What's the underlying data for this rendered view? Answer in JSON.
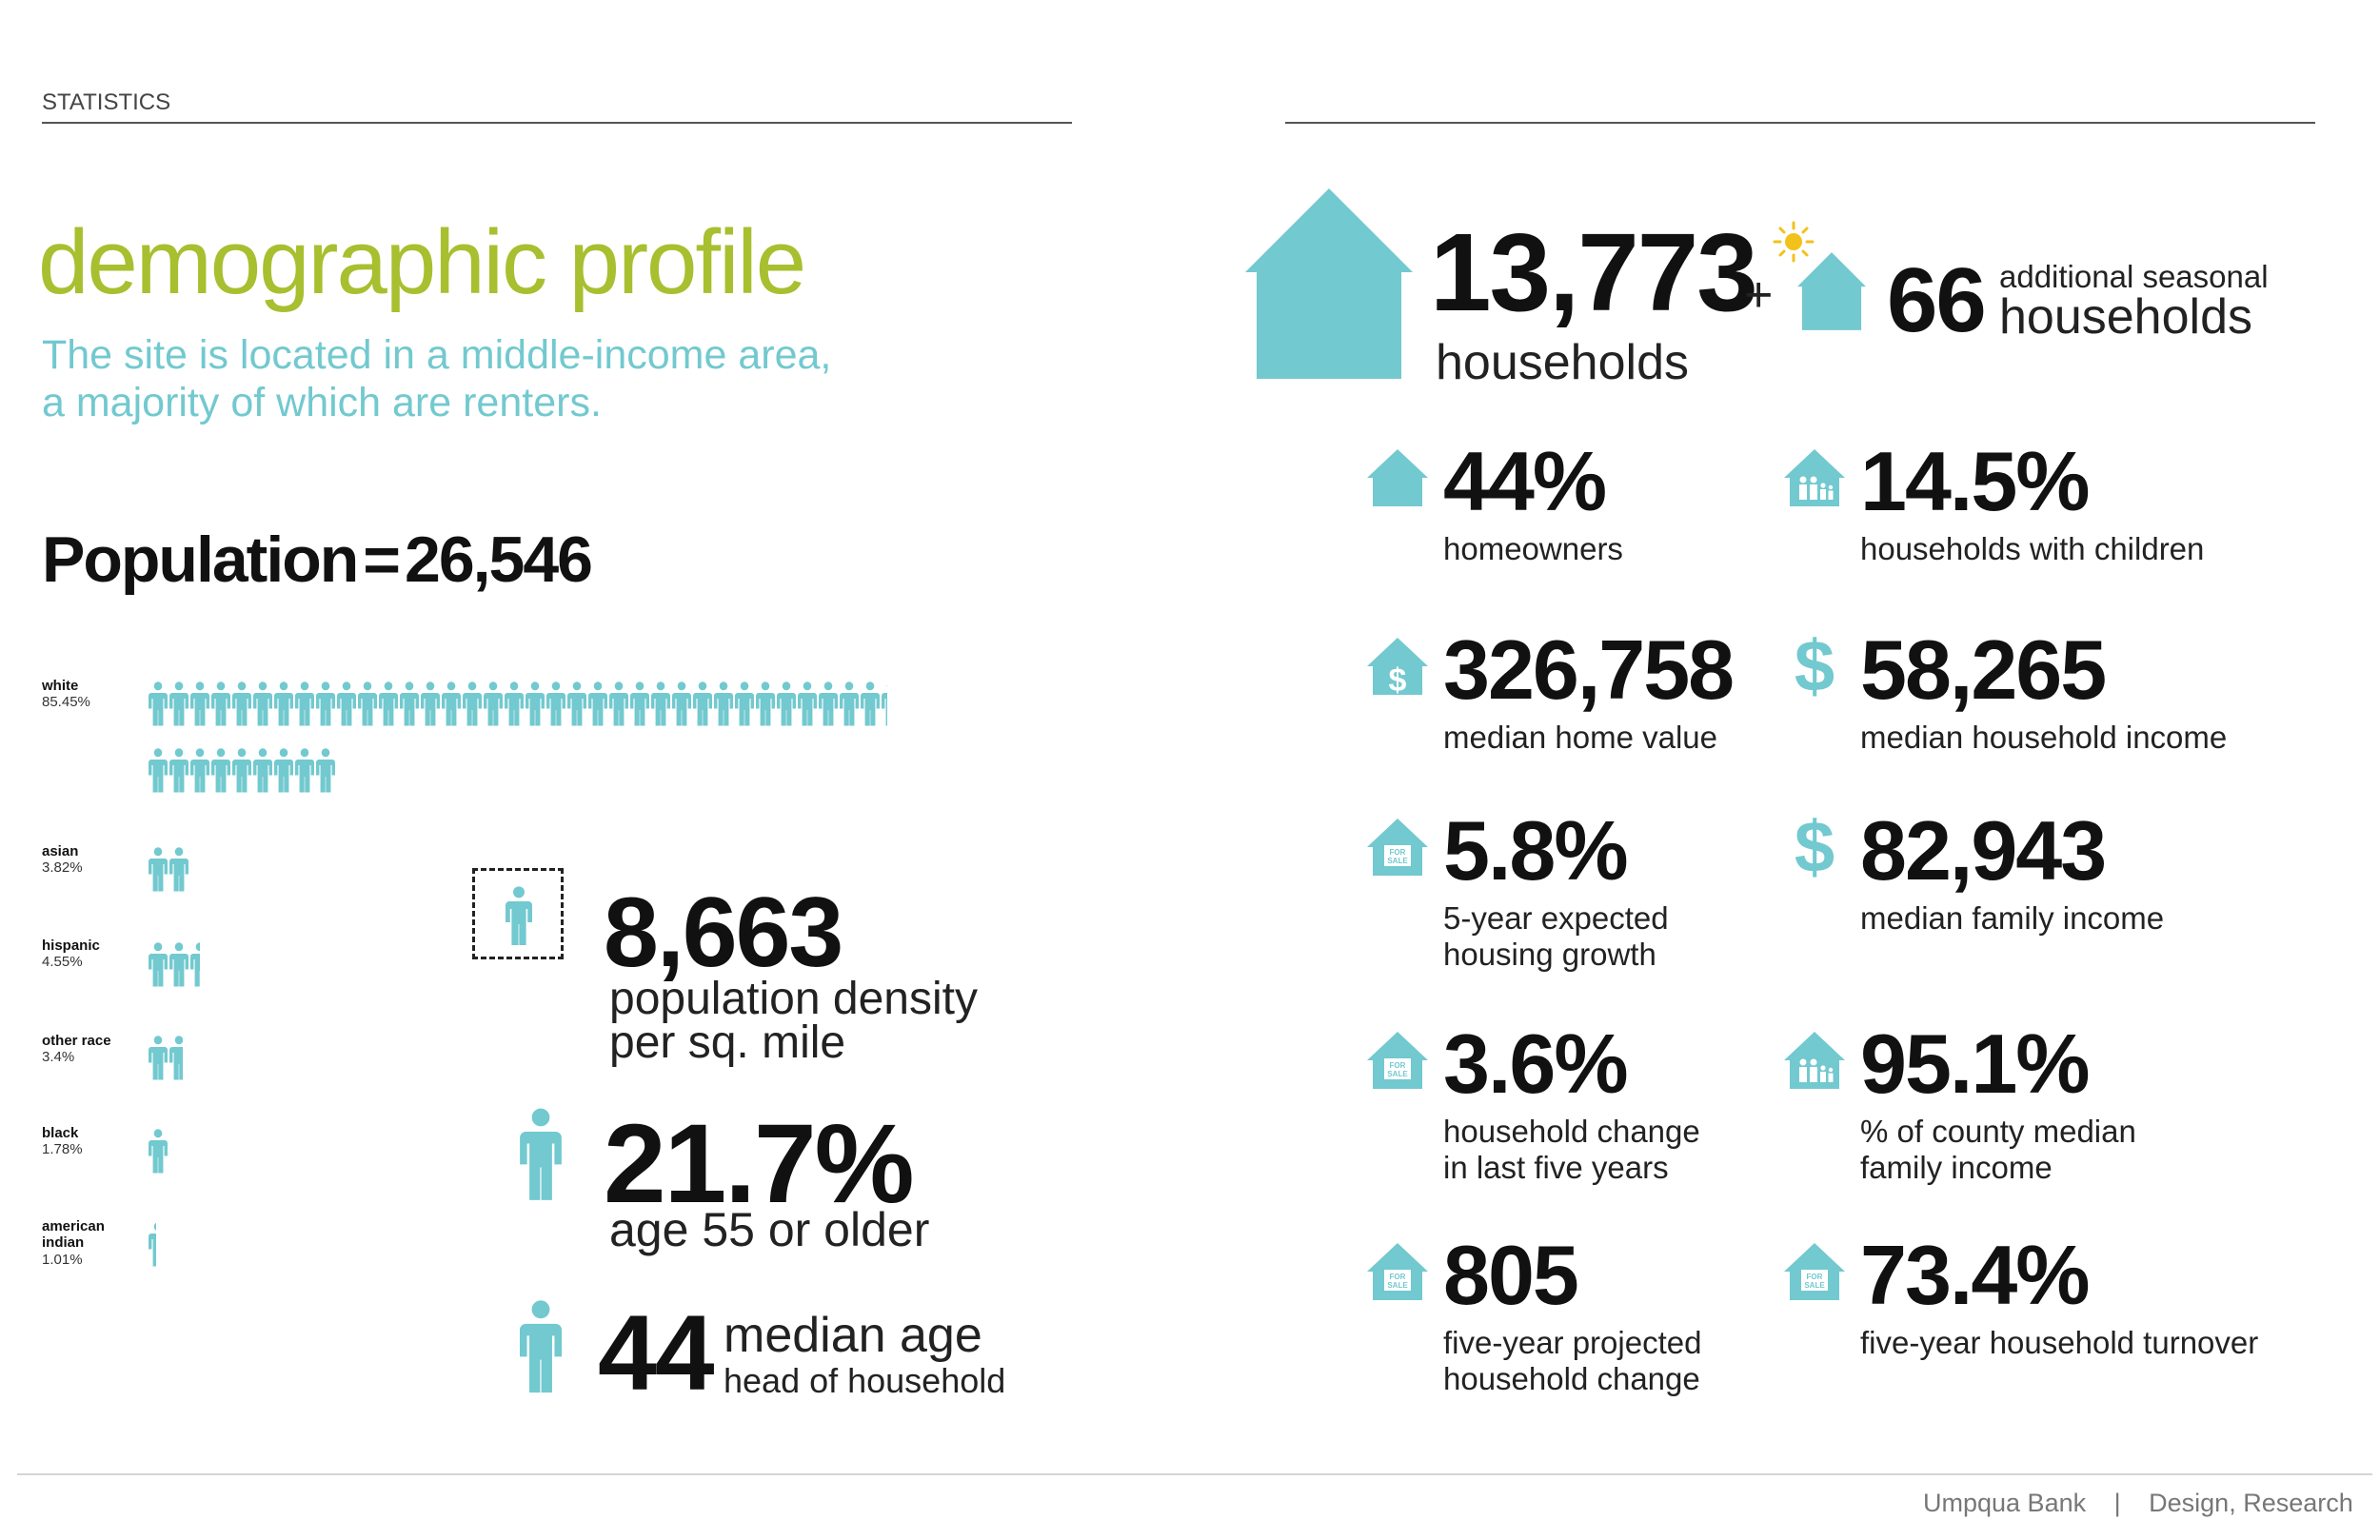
{
  "header": {
    "section_label": "STATISTICS"
  },
  "intro": {
    "title": "demographic profile",
    "subtitle_line1": "The site is located in a middle-income area,",
    "subtitle_line2": "a majority of which are renters."
  },
  "population": {
    "label": "Population",
    "equals": "=",
    "value": "26,546"
  },
  "races": [
    {
      "name": "white",
      "pct": "85.45%",
      "share": 85.45
    },
    {
      "name": "asian",
      "pct": "3.82%",
      "share": 3.82
    },
    {
      "name": "hispanic",
      "pct": "4.55%",
      "share": 4.55
    },
    {
      "name": "other race",
      "pct": "3.4%",
      "share": 3.4
    },
    {
      "name": "black",
      "pct": "1.78%",
      "share": 1.78
    },
    {
      "name": "american indian",
      "pct": "1.01%",
      "share": 1.01,
      "name_line1": "american",
      "name_line2": "indian"
    }
  ],
  "density": {
    "value": "8,663",
    "label_line1": "population density",
    "label_line2": "per sq. mile"
  },
  "age55": {
    "value": "21.7%",
    "label": "age 55 or older"
  },
  "median_age": {
    "value": "44",
    "label_line1": "median age",
    "label_line2": "head of household"
  },
  "households": {
    "value": "13,773",
    "label": "households",
    "plus": "+",
    "seasonal_value": "66",
    "seasonal_label_line1": "additional seasonal",
    "seasonal_label_line2": "households"
  },
  "stats": [
    {
      "icon": "house-icon",
      "value": "44%",
      "line1": "homeowners",
      "line2": ""
    },
    {
      "icon": "family-house-icon",
      "value": "14.5%",
      "line1": "households with children",
      "line2": ""
    },
    {
      "icon": "dollar-house-icon",
      "value": "326,758",
      "line1": "median home value",
      "line2": ""
    },
    {
      "icon": "dollar-icon",
      "value": "58,265",
      "line1": "median household income",
      "line2": ""
    },
    {
      "icon": "for-sale-house-icon",
      "value": "5.8%",
      "line1": "5-year expected",
      "line2": "housing growth"
    },
    {
      "icon": "dollar-icon",
      "value": "82,943",
      "line1": "median family income",
      "line2": ""
    },
    {
      "icon": "for-sale-house-icon",
      "value": "3.6%",
      "line1": "household change",
      "line2": "in last five years"
    },
    {
      "icon": "family-house-icon",
      "value": "95.1%",
      "line1": "% of county median",
      "line2": "family income"
    },
    {
      "icon": "for-sale-house-icon",
      "value": "805",
      "line1": "five-year projected",
      "line2": "household change"
    },
    {
      "icon": "for-sale-house-icon",
      "value": "73.4%",
      "line1": "five-year household turnover",
      "line2": ""
    }
  ],
  "icon_text": {
    "for_sale_line1": "FOR",
    "for_sale_line2": "SALE"
  },
  "footer": {
    "company": "Umpqua Bank",
    "separator": "|",
    "dept": "Design, Research"
  },
  "colors": {
    "accent_teal": "#72c9cf",
    "title_green": "#a8bf2f",
    "sun_yellow": "#f2c21a",
    "text_dark": "#111111"
  }
}
